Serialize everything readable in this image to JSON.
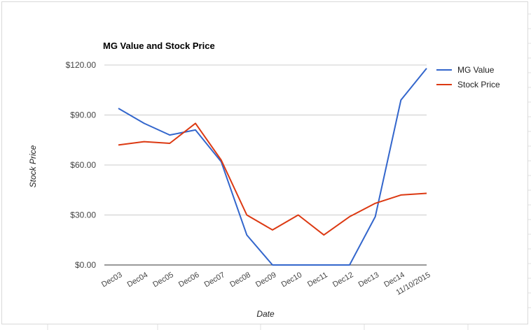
{
  "chart_data": {
    "type": "line",
    "title": "MG Value and Stock Price",
    "xlabel": "Date",
    "ylabel": "Stock Price",
    "categories": [
      "Dec03",
      "Dec04",
      "Dec05",
      "Dec06",
      "Dec07",
      "Dec08",
      "Dec09",
      "Dec10",
      "Dec11",
      "Dec12",
      "Dec13",
      "Dec14",
      "11/10/2015"
    ],
    "ylim": [
      0,
      120
    ],
    "yticks": [
      "$0.00",
      "$30.00",
      "$60.00",
      "$90.00",
      "$120.00"
    ],
    "grid": true,
    "legend_position": "right",
    "series": [
      {
        "name": "MG Value",
        "color": "#3366cc",
        "values": [
          94,
          85,
          78,
          81,
          62,
          18,
          0,
          0,
          0,
          0,
          29,
          99,
          118
        ]
      },
      {
        "name": "Stock Price",
        "color": "#dc3912",
        "values": [
          72,
          74,
          73,
          85,
          63,
          30,
          21,
          30,
          18,
          29,
          37,
          42,
          43
        ]
      }
    ]
  }
}
